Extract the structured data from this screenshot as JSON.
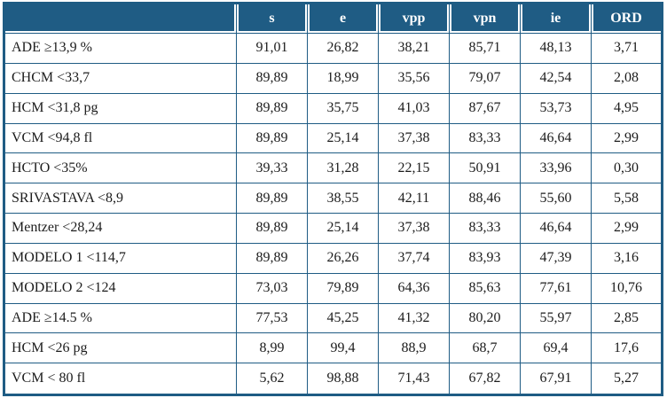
{
  "colors": {
    "accent": "#1f5c84",
    "header_text": "#ffffff",
    "body_text": "#1c1c1c"
  },
  "table": {
    "corner_label": "",
    "columns": [
      "s",
      "e",
      "vpp",
      "vpn",
      "ie",
      "ORD"
    ],
    "rows": [
      {
        "label": "ADE ≥13,9 %",
        "values": [
          "91,01",
          "26,82",
          "38,21",
          "85,71",
          "48,13",
          "3,71"
        ]
      },
      {
        "label": "CHCM <33,7",
        "values": [
          "89,89",
          "18,99",
          "35,56",
          "79,07",
          "42,54",
          "2,08"
        ]
      },
      {
        "label": "HCM <31,8 pg",
        "values": [
          "89,89",
          "35,75",
          "41,03",
          "87,67",
          "53,73",
          "4,95"
        ]
      },
      {
        "label": "VCM <94,8 fl",
        "values": [
          "89,89",
          "25,14",
          "37,38",
          "83,33",
          "46,64",
          "2,99"
        ]
      },
      {
        "label": "HCTO <35%",
        "values": [
          "39,33",
          "31,28",
          "22,15",
          "50,91",
          "33,96",
          "0,30"
        ]
      },
      {
        "label": "SRIVASTAVA <8,9",
        "values": [
          "89,89",
          "38,55",
          "42,11",
          "88,46",
          "55,60",
          "5,58"
        ]
      },
      {
        "label": "Mentzer <28,24",
        "values": [
          "89,89",
          "25,14",
          "37,38",
          "83,33",
          "46,64",
          "2,99"
        ]
      },
      {
        "label": "MODELO 1 <114,7",
        "values": [
          "89,89",
          "26,26",
          "37,74",
          "83,93",
          "47,39",
          "3,16"
        ]
      },
      {
        "label": "MODELO 2 <124",
        "values": [
          "73,03",
          "79,89",
          "64,36",
          "85,63",
          "77,61",
          "10,76"
        ]
      },
      {
        "label": "ADE ≥14.5 %",
        "values": [
          "77,53",
          "45,25",
          "41,32",
          "80,20",
          "55,97",
          "2,85"
        ]
      },
      {
        "label": "HCM <26 pg",
        "values": [
          "8,99",
          "99,4",
          "88,9",
          "68,7",
          "69,4",
          "17,6"
        ]
      },
      {
        "label": "VCM < 80 fl",
        "values": [
          "5,62",
          "98,88",
          "71,43",
          "67,82",
          "67,91",
          "5,27"
        ]
      }
    ]
  },
  "chart_data": {
    "type": "table",
    "title": "",
    "columns": [
      "",
      "s",
      "e",
      "vpp",
      "vpn",
      "ie",
      "ORD"
    ],
    "rows": [
      [
        "ADE ≥13,9 %",
        91.01,
        26.82,
        38.21,
        85.71,
        48.13,
        3.71
      ],
      [
        "CHCM <33,7",
        89.89,
        18.99,
        35.56,
        79.07,
        42.54,
        2.08
      ],
      [
        "HCM <31,8 pg",
        89.89,
        35.75,
        41.03,
        87.67,
        53.73,
        4.95
      ],
      [
        "VCM <94,8 fl",
        89.89,
        25.14,
        37.38,
        83.33,
        46.64,
        2.99
      ],
      [
        "HCTO <35%",
        39.33,
        31.28,
        22.15,
        50.91,
        33.96,
        0.3
      ],
      [
        "SRIVASTAVA <8,9",
        89.89,
        38.55,
        42.11,
        88.46,
        55.6,
        5.58
      ],
      [
        "Mentzer <28,24",
        89.89,
        25.14,
        37.38,
        83.33,
        46.64,
        2.99
      ],
      [
        "MODELO 1 <114,7",
        89.89,
        26.26,
        37.74,
        83.93,
        47.39,
        3.16
      ],
      [
        "MODELO 2 <124",
        73.03,
        79.89,
        64.36,
        85.63,
        77.61,
        10.76
      ],
      [
        "ADE ≥14.5 %",
        77.53,
        45.25,
        41.32,
        80.2,
        55.97,
        2.85
      ],
      [
        "HCM <26 pg",
        8.99,
        99.4,
        88.9,
        68.7,
        69.4,
        17.6
      ],
      [
        "VCM < 80 fl",
        5.62,
        98.88,
        71.43,
        67.82,
        67.91,
        5.27
      ]
    ]
  }
}
